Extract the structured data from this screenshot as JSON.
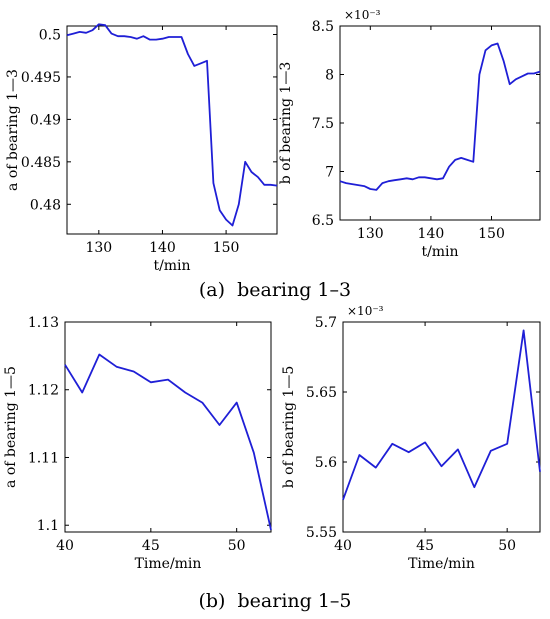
{
  "captions": {
    "a": {
      "letter": "(a)",
      "text": "bearing 1–3"
    },
    "b": {
      "letter": "(b)",
      "text": "bearing 1–5"
    }
  },
  "line_color": "#1f1fd6",
  "chart_data": [
    {
      "type": "line",
      "xlabel": "t/min",
      "ylabel": "a of  bearing 1—3",
      "xlim": [
        125,
        158
      ],
      "ylim": [
        0.4765,
        0.501
      ],
      "xticks": [
        130,
        140,
        150
      ],
      "yticks": [
        0.48,
        0.485,
        0.49,
        0.495,
        0.5
      ],
      "ytick_labels": [
        "0.48",
        "0.485",
        "0.49",
        "0.495",
        "0.5"
      ],
      "exponent_label": "",
      "series": [
        {
          "x": [
            125,
            126,
            127,
            128,
            129,
            130,
            131,
            132,
            133,
            134,
            135,
            136,
            137,
            138,
            139,
            140,
            141,
            142,
            143,
            144,
            145,
            146,
            147,
            148,
            149,
            150,
            151,
            152,
            153,
            154,
            155,
            156,
            157,
            158
          ],
          "y": [
            0.4999,
            0.5001,
            0.5003,
            0.5002,
            0.5005,
            0.5012,
            0.5011,
            0.5001,
            0.4998,
            0.4998,
            0.4997,
            0.4995,
            0.4998,
            0.4994,
            0.4994,
            0.4995,
            0.4997,
            0.4997,
            0.4997,
            0.4977,
            0.4963,
            0.4966,
            0.4969,
            0.4825,
            0.4793,
            0.4782,
            0.4775,
            0.48,
            0.485,
            0.4838,
            0.4832,
            0.4823,
            0.4823,
            0.4822
          ]
        }
      ]
    },
    {
      "type": "line",
      "xlabel": "t/min",
      "ylabel": "b of  bearing 1—3",
      "xlim": [
        125,
        158
      ],
      "ylim": [
        6.5,
        8.5
      ],
      "xticks": [
        130,
        140,
        150
      ],
      "yticks": [
        6.5,
        7,
        7.5,
        8,
        8.5
      ],
      "ytick_labels": [
        "6.5",
        "7",
        "7.5",
        "8",
        "8.5"
      ],
      "exponent_label": "×10⁻³",
      "series": [
        {
          "x": [
            125,
            126,
            127,
            128,
            129,
            130,
            131,
            132,
            133,
            134,
            135,
            136,
            137,
            138,
            139,
            140,
            141,
            142,
            143,
            144,
            145,
            146,
            147,
            148,
            149,
            150,
            151,
            152,
            153,
            154,
            155,
            156,
            157,
            158
          ],
          "y": [
            6.9,
            6.88,
            6.87,
            6.86,
            6.85,
            6.82,
            6.81,
            6.88,
            6.9,
            6.91,
            6.92,
            6.93,
            6.92,
            6.94,
            6.94,
            6.93,
            6.92,
            6.93,
            7.05,
            7.12,
            7.14,
            7.12,
            7.1,
            8.0,
            8.25,
            8.3,
            8.32,
            8.14,
            7.9,
            7.95,
            7.98,
            8.01,
            8.01,
            8.03
          ]
        }
      ]
    },
    {
      "type": "line",
      "xlabel": "Time/min",
      "ylabel": "a of  bearing 1—5",
      "xlim": [
        40,
        52
      ],
      "ylim": [
        1.099,
        1.13
      ],
      "xticks": [
        40,
        45,
        50
      ],
      "yticks": [
        1.1,
        1.11,
        1.12,
        1.13
      ],
      "ytick_labels": [
        "1.1",
        "1.11",
        "1.12",
        "1.13"
      ],
      "exponent_label": "",
      "series": [
        {
          "x": [
            40,
            41,
            42,
            43,
            44,
            45,
            46,
            47,
            48,
            49,
            50,
            51,
            52
          ],
          "y": [
            1.1237,
            1.1196,
            1.1252,
            1.1234,
            1.1227,
            1.1211,
            1.1215,
            1.1196,
            1.1181,
            1.1148,
            1.1181,
            1.1107,
            1.0993
          ]
        }
      ]
    },
    {
      "type": "line",
      "xlabel": "Time/min",
      "ylabel": "b of  bearing 1—5",
      "xlim": [
        40,
        52
      ],
      "ylim": [
        5.55,
        5.7
      ],
      "xticks": [
        40,
        45,
        50
      ],
      "yticks": [
        5.55,
        5.6,
        5.65,
        5.7
      ],
      "ytick_labels": [
        "5.55",
        "5.6",
        "5.65",
        "5.7"
      ],
      "exponent_label": "×10⁻³",
      "series": [
        {
          "x": [
            40,
            41,
            42,
            43,
            44,
            45,
            46,
            47,
            48,
            49,
            50,
            51,
            52
          ],
          "y": [
            5.573,
            5.605,
            5.596,
            5.613,
            5.607,
            5.614,
            5.597,
            5.609,
            5.582,
            5.608,
            5.613,
            5.694,
            5.593
          ]
        }
      ]
    }
  ]
}
